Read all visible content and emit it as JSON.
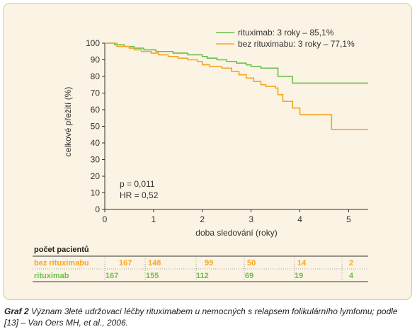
{
  "chart_data": {
    "type": "line",
    "title": "",
    "xlabel": "doba sledování (roky)",
    "ylabel": "celkové přežití (%)",
    "xlim": [
      0,
      5.4
    ],
    "ylim": [
      0,
      100
    ],
    "x_ticks": [
      0,
      1,
      2,
      3,
      4,
      5
    ],
    "y_ticks": [
      0,
      10,
      20,
      30,
      40,
      50,
      60,
      70,
      80,
      90,
      100
    ],
    "grid": false,
    "legend": "top-right",
    "series": [
      {
        "name": "rituximab: 3 roky – 85,1%",
        "color": "#6cbf4b",
        "x": [
          0,
          0.15,
          0.2,
          0.4,
          0.6,
          0.8,
          1.05,
          1.4,
          1.7,
          2.0,
          2.1,
          2.3,
          2.5,
          2.7,
          2.9,
          3.0,
          3.2,
          3.5,
          3.55,
          3.8,
          3.85,
          5.4
        ],
        "y": [
          100,
          100,
          99,
          98,
          97,
          96,
          95,
          94,
          93,
          92,
          91,
          90,
          89,
          88,
          87,
          86,
          85,
          85,
          80,
          80,
          76,
          76
        ]
      },
      {
        "name": "bez rituximabu: 3 roky – 77,1%",
        "color": "#f5a623",
        "x": [
          0,
          0.25,
          0.5,
          0.6,
          0.75,
          0.95,
          1.1,
          1.3,
          1.5,
          1.7,
          1.9,
          2.0,
          2.15,
          2.4,
          2.6,
          2.75,
          2.9,
          3.05,
          3.2,
          3.3,
          3.5,
          3.55,
          3.65,
          3.85,
          4.0,
          4.6,
          4.65,
          5.4
        ],
        "y": [
          100,
          98,
          97,
          96,
          95,
          94,
          93,
          92,
          91,
          90,
          89,
          87,
          86,
          85,
          83,
          81,
          79,
          77,
          75,
          74,
          73,
          69,
          65,
          61,
          57,
          57,
          48,
          48
        ]
      }
    ],
    "annotations": [
      "p = 0,011",
      "HR = 0,52"
    ]
  },
  "table": {
    "header": "počet pacientů",
    "rows": [
      {
        "label": "bez rituximabu",
        "color": "#f5a623",
        "values": [
          "167",
          "148",
          "99",
          "50",
          "14",
          "2"
        ]
      },
      {
        "label": "rituximab",
        "color": "#6cbf4b",
        "values": [
          "167",
          "155",
          "112",
          "69",
          "19",
          "4"
        ]
      }
    ]
  },
  "caption": {
    "label": "Graf 2",
    "text": " Význam 3leté udržovací léčby rituximabem  u nemocných s relapsem folikulárního lymfomu; podle [13] – Van Oers MH, et al., 2006."
  }
}
